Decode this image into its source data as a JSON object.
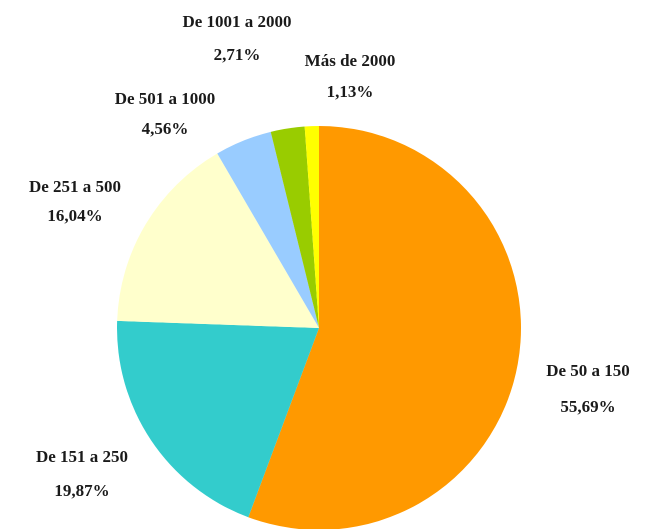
{
  "chart_data": {
    "type": "pie",
    "categories": [
      "De 50 a 150",
      "De 151 a 250",
      "De 251 a 500",
      "De 501 a 1000",
      "De 1001 a 2000",
      "Más de 2000"
    ],
    "values": [
      55.69,
      19.87,
      16.04,
      4.56,
      2.71,
      1.13
    ],
    "value_labels": [
      "55,69%",
      "19,87%",
      "16,04%",
      "4,56%",
      "2,71%",
      "1,13%"
    ],
    "colors": [
      "#FF9900",
      "#33CCCC",
      "#FFFFCC",
      "#99CCFF",
      "#99CC00",
      "#FFFF00"
    ]
  }
}
